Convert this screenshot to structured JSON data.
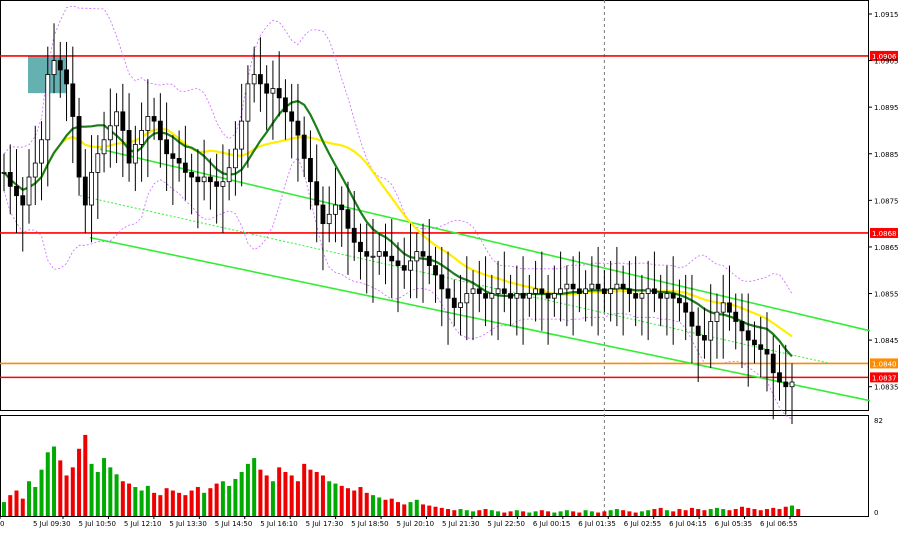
{
  "chart_data": {
    "type": "candlestick",
    "symbol": "",
    "price_axis": {
      "ylim": [
        1.083,
        1.0918
      ],
      "ticks": [
        "1.0915",
        "1.0905",
        "1.0895",
        "1.0885",
        "1.0875",
        "1.0865",
        "1.0855",
        "1.0845",
        "1.0835"
      ]
    },
    "volume_axis": {
      "ylim": [
        0,
        82
      ],
      "ticks": [
        "82",
        "0"
      ]
    },
    "time_axis": {
      "ticks": [
        "0",
        "5 Jul 09:30",
        "5 Jul 10:50",
        "5 Jul 12:10",
        "5 Jul 13:30",
        "5 Jul 14:50",
        "5 Jul 16:10",
        "5 Jul 17:30",
        "5 Jul 18:50",
        "5 Jul 20:10",
        "5 Jul 21:30",
        "5 Jul 22:50",
        "6 Jul 00:15",
        "6 Jul 01:35",
        "6 Jul 02:55",
        "6 Jul 04:15",
        "6 Jul 05:35",
        "6 Jul 06:55"
      ]
    },
    "horizontal_levels": [
      {
        "label": "1.0906",
        "value": 1.0906,
        "color": "#ff0000"
      },
      {
        "label": "1.0868",
        "value": 1.0868,
        "color": "#ff0000"
      },
      {
        "label": "1.0840",
        "value": 1.084,
        "color": "#ff8c00"
      },
      {
        "label": "1.0837",
        "value": 1.0837,
        "color": "#ff0000"
      }
    ],
    "channel": {
      "color": "#33ee33",
      "upper": [
        [
          100,
          1.0886
        ],
        [
          870,
          1.0847
        ]
      ],
      "lower": [
        [
          90,
          1.0867
        ],
        [
          870,
          1.0832
        ]
      ],
      "mid_dotted": [
        [
          80,
          1.0876
        ],
        [
          830,
          1.084
        ]
      ]
    },
    "highlight_box": {
      "x": [
        28,
        67
      ],
      "y": [
        1.0898,
        1.0906
      ],
      "color": "#4aa3a3"
    },
    "vline_time_index": 96,
    "candles_close": [
      1.0881,
      1.0878,
      1.0876,
      1.0874,
      1.088,
      1.0883,
      1.0888,
      1.0902,
      1.0905,
      1.0903,
      1.09,
      1.0893,
      1.088,
      1.0874,
      1.0881,
      1.0885,
      1.0888,
      1.0891,
      1.0894,
      1.089,
      1.0883,
      1.0887,
      1.089,
      1.0893,
      1.0892,
      1.0888,
      1.0885,
      1.0884,
      1.0883,
      1.0881,
      1.088,
      1.0879,
      1.088,
      1.0879,
      1.0878,
      1.0879,
      1.0882,
      1.0886,
      1.0892,
      1.09,
      1.0902,
      1.09,
      1.0898,
      1.0899,
      1.0897,
      1.0894,
      1.0892,
      1.0889,
      1.0884,
      1.0879,
      1.0874,
      1.087,
      1.0872,
      1.0874,
      1.0873,
      1.0869,
      1.0866,
      1.0864,
      1.0863,
      1.0863,
      1.0864,
      1.0863,
      1.0862,
      1.0861,
      1.086,
      1.0862,
      1.0864,
      1.0863,
      1.0861,
      1.0859,
      1.0856,
      1.0854,
      1.0852,
      1.0853,
      1.0855,
      1.0856,
      1.0855,
      1.0854,
      1.0855,
      1.0856,
      1.0855,
      1.0854,
      1.0855,
      1.0854,
      1.0855,
      1.0856,
      1.0855,
      1.0854,
      1.0855,
      1.0856,
      1.0857,
      1.0856,
      1.0855,
      1.0856,
      1.0857,
      1.0856,
      1.0855,
      1.0856,
      1.0857,
      1.0856,
      1.0855,
      1.0854,
      1.0855,
      1.0856,
      1.0855,
      1.0854,
      1.0855,
      1.0854,
      1.0853,
      1.0851,
      1.0848,
      1.0846,
      1.0845,
      1.0849,
      1.0851,
      1.0853,
      1.0851,
      1.0849,
      1.0847,
      1.0845,
      1.0844,
      1.0843,
      1.0842,
      1.0838,
      1.0836,
      1.0835,
      1.0836
    ],
    "volumes": [
      12,
      18,
      22,
      15,
      30,
      25,
      40,
      55,
      60,
      48,
      35,
      42,
      58,
      70,
      45,
      38,
      50,
      42,
      36,
      30,
      28,
      25,
      22,
      26,
      20,
      18,
      24,
      22,
      20,
      18,
      22,
      25,
      20,
      24,
      28,
      30,
      26,
      32,
      38,
      45,
      50,
      40,
      35,
      30,
      42,
      38,
      35,
      30,
      45,
      40,
      38,
      35,
      30,
      28,
      26,
      24,
      22,
      25,
      20,
      18,
      16,
      14,
      15,
      12,
      10,
      12,
      14,
      10,
      9,
      8,
      7,
      6,
      5,
      6,
      5,
      4,
      5,
      6,
      5,
      4,
      3,
      4,
      5,
      4,
      3,
      4,
      5,
      4,
      3,
      4,
      5,
      4,
      3,
      5,
      4,
      3,
      4,
      5,
      6,
      5,
      4,
      3,
      4,
      5,
      6,
      7,
      5,
      4,
      6,
      5,
      7,
      6,
      5,
      6,
      7,
      6,
      5,
      6,
      8,
      7,
      6,
      5,
      6,
      7,
      6,
      8,
      9,
      6
    ],
    "ma_slow_color": "#ffee00",
    "ma_fast_color": "#1a7f1a",
    "bollinger_color": "#cc66ff",
    "up_volume_color": "#00aa00",
    "down_volume_color": "#ee0000"
  }
}
